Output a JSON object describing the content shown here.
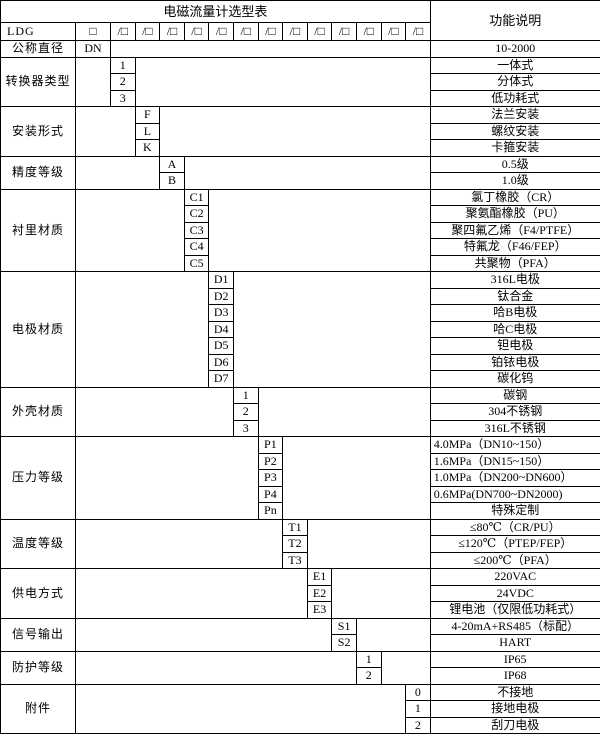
{
  "table": {
    "title": "电磁流量计选型表",
    "function_header": "功能说明",
    "model_code": "LDG",
    "blank_box": "□",
    "slash_boxes": [
      "/□",
      "/□",
      "/□",
      "/□",
      "/□",
      "/□",
      "/□",
      "/□",
      "/□",
      "/□",
      "/□",
      "/□",
      "/□"
    ],
    "colors": {
      "border": "#000000",
      "text": "#000000",
      "background": "#ffffff"
    },
    "groups": [
      {
        "label": "公称直径",
        "code_col": 2,
        "rows": [
          {
            "code": "DN",
            "desc": "10-2000"
          }
        ]
      },
      {
        "label": "转换器类型",
        "code_col": 3,
        "rows": [
          {
            "code": "1",
            "desc": "一体式"
          },
          {
            "code": "2",
            "desc": "分体式"
          },
          {
            "code": "3",
            "desc": "低功耗式"
          }
        ]
      },
      {
        "label": "安装形式",
        "code_col": 4,
        "rows": [
          {
            "code": "F",
            "desc": "法兰安装"
          },
          {
            "code": "L",
            "desc": "螺纹安装"
          },
          {
            "code": "K",
            "desc": "卡箍安装"
          }
        ]
      },
      {
        "label": "精度等级",
        "code_col": 5,
        "rows": [
          {
            "code": "A",
            "desc": "0.5级"
          },
          {
            "code": "B",
            "desc": "1.0级"
          }
        ]
      },
      {
        "label": "衬里材质",
        "code_col": 6,
        "rows": [
          {
            "code": "C1",
            "desc": "氯丁橡胶（CR）"
          },
          {
            "code": "C2",
            "desc": "聚氨酯橡胶（PU）"
          },
          {
            "code": "C3",
            "desc": "聚四氟乙烯（F4/PTFE）"
          },
          {
            "code": "C4",
            "desc": "特氟龙（F46/FEP）"
          },
          {
            "code": "C5",
            "desc": "共聚物（PFA）"
          }
        ]
      },
      {
        "label": "电极材质",
        "code_col": 7,
        "rows": [
          {
            "code": "D1",
            "desc": "316L电极"
          },
          {
            "code": "D2",
            "desc": "钛合金"
          },
          {
            "code": "D3",
            "desc": "哈B电极"
          },
          {
            "code": "D4",
            "desc": "哈C电极"
          },
          {
            "code": "D5",
            "desc": "钽电极"
          },
          {
            "code": "D6",
            "desc": "铂铱电极"
          },
          {
            "code": "D7",
            "desc": "碳化钨"
          }
        ]
      },
      {
        "label": "外壳材质",
        "code_col": 8,
        "rows": [
          {
            "code": "1",
            "desc": "碳钢"
          },
          {
            "code": "2",
            "desc": "304不锈钢"
          },
          {
            "code": "3",
            "desc": "316L不锈钢"
          }
        ]
      },
      {
        "label": "压力等级",
        "code_col": 9,
        "rows": [
          {
            "code": "P1",
            "desc": "4.0MPa（DN10~150）",
            "align": "left"
          },
          {
            "code": "P2",
            "desc": "1.6MPa（DN15~150）",
            "align": "left"
          },
          {
            "code": "P3",
            "desc": "1.0MPa（DN200~DN600）",
            "align": "left"
          },
          {
            "code": "P4",
            "desc": "0.6MPa(DN700~DN2000)",
            "align": "left"
          },
          {
            "code": "Pn",
            "desc": "特殊定制"
          }
        ]
      },
      {
        "label": "温度等级",
        "code_col": 10,
        "rows": [
          {
            "code": "T1",
            "desc": "≤80℃（CR/PU）"
          },
          {
            "code": "T2",
            "desc": "≤120℃（PTEP/FEP）"
          },
          {
            "code": "T3",
            "desc": "≤200℃（PFA）"
          }
        ]
      },
      {
        "label": "供电方式",
        "code_col": 11,
        "rows": [
          {
            "code": "E1",
            "desc": "220VAC"
          },
          {
            "code": "E2",
            "desc": "24VDC"
          },
          {
            "code": "E3",
            "desc": "锂电池（仅限低功耗式）"
          }
        ]
      },
      {
        "label": "信号输出",
        "code_col": 12,
        "rows": [
          {
            "code": "S1",
            "desc": "4-20mA+RS485（标配）"
          },
          {
            "code": "S2",
            "desc": "HART"
          }
        ]
      },
      {
        "label": "防护等级",
        "code_col": 13,
        "rows": [
          {
            "code": "1",
            "desc": "IP65"
          },
          {
            "code": "2",
            "desc": "IP68"
          }
        ]
      },
      {
        "label": "附件",
        "code_col": 15,
        "rows": [
          {
            "code": "0",
            "desc": "不接地"
          },
          {
            "code": "1",
            "desc": "接地电极"
          },
          {
            "code": "2",
            "desc": "刮刀电极"
          }
        ]
      }
    ]
  }
}
